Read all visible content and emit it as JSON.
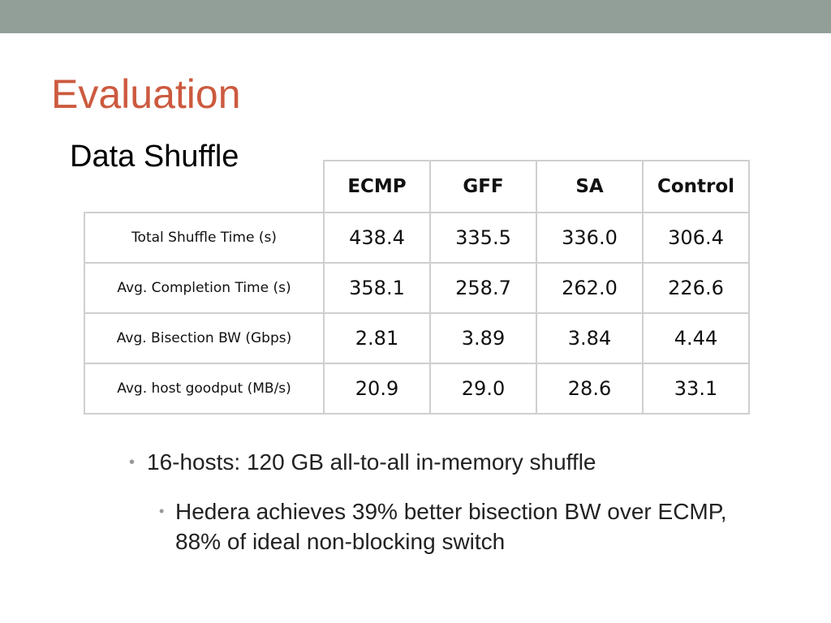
{
  "slide": {
    "title": "Evaluation",
    "subtitle": "Data Shuffle"
  },
  "table": {
    "columns": [
      "ECMP",
      "GFF",
      "SA",
      "Control"
    ],
    "rows": [
      {
        "label": "Total Shuffle Time (s)",
        "values": [
          "438.4",
          "335.5",
          "336.0",
          "306.4"
        ]
      },
      {
        "label": "Avg. Completion Time (s)",
        "values": [
          "358.1",
          "258.7",
          "262.0",
          "226.6"
        ]
      },
      {
        "label": "Avg. Bisection BW (Gbps)",
        "values": [
          "2.81",
          "3.89",
          "3.84",
          "4.44"
        ]
      },
      {
        "label": "Avg. host goodput (MB/s)",
        "values": [
          "20.9",
          "29.0",
          "28.6",
          "33.1"
        ]
      }
    ]
  },
  "bullets": [
    {
      "text": "16-hosts: 120 GB all-to-all in-memory shuffle",
      "level": 1
    },
    {
      "text": "Hedera achieves 39% better bisection BW over ECMP,  88% of ideal non-blocking switch",
      "level": 2
    }
  ],
  "colors": {
    "top_bar": "#929f98",
    "title": "#cc5a3f",
    "table_border": "#cfcfcf",
    "bullet_dot": "#999999"
  }
}
